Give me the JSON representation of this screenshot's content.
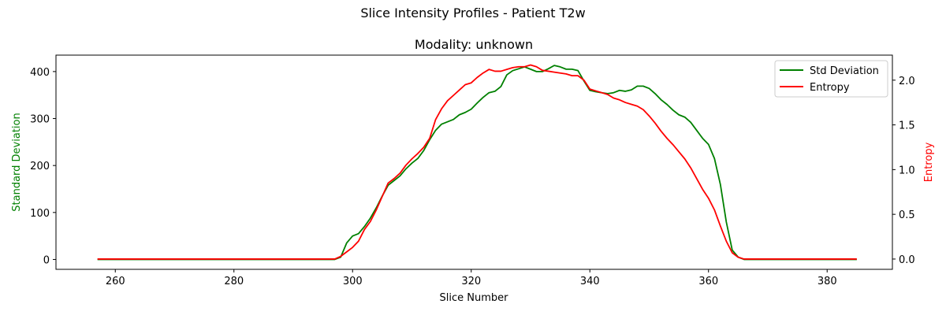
{
  "suptitle": "Slice Intensity Profiles - Patient T2w",
  "chart_data": {
    "type": "line",
    "title": "Modality: unknown",
    "xlabel": "Slice Number",
    "ylabel_left": "Standard Deviation",
    "ylabel_right": "Entropy",
    "xlim": [
      250,
      391
    ],
    "ylim_left": [
      -21,
      435
    ],
    "ylim_right": [
      -0.115,
      2.28
    ],
    "xticks": [
      260,
      280,
      300,
      320,
      340,
      360,
      380
    ],
    "yticks_left": [
      0,
      100,
      200,
      300,
      400
    ],
    "yticks_right": [
      0.0,
      0.5,
      1.0,
      1.5,
      2.0
    ],
    "grid": false,
    "legend_position": "upper right",
    "series": [
      {
        "name": "Std Deviation",
        "axis": "left",
        "color": "#008000",
        "points": [
          [
            257,
            0
          ],
          [
            297,
            0
          ],
          [
            298,
            5
          ],
          [
            299,
            35
          ],
          [
            300,
            50
          ],
          [
            301,
            55
          ],
          [
            302,
            70
          ],
          [
            303,
            88
          ],
          [
            304,
            110
          ],
          [
            305,
            135
          ],
          [
            306,
            158
          ],
          [
            307,
            168
          ],
          [
            308,
            178
          ],
          [
            309,
            193
          ],
          [
            310,
            205
          ],
          [
            311,
            215
          ],
          [
            312,
            232
          ],
          [
            313,
            255
          ],
          [
            314,
            275
          ],
          [
            315,
            288
          ],
          [
            316,
            293
          ],
          [
            317,
            298
          ],
          [
            318,
            308
          ],
          [
            319,
            313
          ],
          [
            320,
            320
          ],
          [
            321,
            333
          ],
          [
            322,
            345
          ],
          [
            323,
            355
          ],
          [
            324,
            358
          ],
          [
            325,
            368
          ],
          [
            326,
            393
          ],
          [
            327,
            402
          ],
          [
            328,
            406
          ],
          [
            329,
            410
          ],
          [
            330,
            405
          ],
          [
            331,
            400
          ],
          [
            332,
            400
          ],
          [
            333,
            406
          ],
          [
            334,
            413
          ],
          [
            335,
            410
          ],
          [
            336,
            405
          ],
          [
            337,
            405
          ],
          [
            338,
            402
          ],
          [
            339,
            380
          ],
          [
            340,
            360
          ],
          [
            341,
            357
          ],
          [
            342,
            355
          ],
          [
            343,
            353
          ],
          [
            344,
            355
          ],
          [
            345,
            360
          ],
          [
            346,
            358
          ],
          [
            347,
            361
          ],
          [
            348,
            369
          ],
          [
            349,
            369
          ],
          [
            350,
            364
          ],
          [
            351,
            353
          ],
          [
            352,
            340
          ],
          [
            353,
            330
          ],
          [
            354,
            318
          ],
          [
            355,
            308
          ],
          [
            356,
            303
          ],
          [
            357,
            292
          ],
          [
            358,
            275
          ],
          [
            359,
            258
          ],
          [
            360,
            245
          ],
          [
            361,
            215
          ],
          [
            362,
            160
          ],
          [
            363,
            80
          ],
          [
            364,
            20
          ],
          [
            365,
            5
          ],
          [
            366,
            0
          ],
          [
            385,
            0
          ]
        ]
      },
      {
        "name": "Entropy",
        "axis": "right",
        "color": "#ff0000",
        "points": [
          [
            257,
            0
          ],
          [
            297,
            0
          ],
          [
            298,
            0.03
          ],
          [
            299,
            0.08
          ],
          [
            300,
            0.13
          ],
          [
            301,
            0.2
          ],
          [
            302,
            0.33
          ],
          [
            303,
            0.42
          ],
          [
            304,
            0.55
          ],
          [
            305,
            0.7
          ],
          [
            306,
            0.85
          ],
          [
            307,
            0.9
          ],
          [
            308,
            0.96
          ],
          [
            309,
            1.05
          ],
          [
            310,
            1.12
          ],
          [
            311,
            1.18
          ],
          [
            312,
            1.25
          ],
          [
            313,
            1.35
          ],
          [
            314,
            1.56
          ],
          [
            315,
            1.68
          ],
          [
            316,
            1.77
          ],
          [
            317,
            1.83
          ],
          [
            318,
            1.89
          ],
          [
            319,
            1.95
          ],
          [
            320,
            1.97
          ],
          [
            321,
            2.03
          ],
          [
            322,
            2.08
          ],
          [
            323,
            2.12
          ],
          [
            324,
            2.1
          ],
          [
            325,
            2.1
          ],
          [
            326,
            2.12
          ],
          [
            327,
            2.14
          ],
          [
            328,
            2.15
          ],
          [
            329,
            2.15
          ],
          [
            330,
            2.17
          ],
          [
            331,
            2.15
          ],
          [
            332,
            2.11
          ],
          [
            333,
            2.1
          ],
          [
            334,
            2.09
          ],
          [
            335,
            2.08
          ],
          [
            336,
            2.07
          ],
          [
            337,
            2.05
          ],
          [
            338,
            2.05
          ],
          [
            339,
            2.0
          ],
          [
            340,
            1.9
          ],
          [
            341,
            1.88
          ],
          [
            342,
            1.86
          ],
          [
            343,
            1.84
          ],
          [
            344,
            1.8
          ],
          [
            345,
            1.78
          ],
          [
            346,
            1.75
          ],
          [
            347,
            1.73
          ],
          [
            348,
            1.71
          ],
          [
            349,
            1.67
          ],
          [
            350,
            1.6
          ],
          [
            351,
            1.52
          ],
          [
            352,
            1.43
          ],
          [
            353,
            1.35
          ],
          [
            354,
            1.28
          ],
          [
            355,
            1.2
          ],
          [
            356,
            1.12
          ],
          [
            357,
            1.02
          ],
          [
            358,
            0.9
          ],
          [
            359,
            0.78
          ],
          [
            360,
            0.68
          ],
          [
            361,
            0.55
          ],
          [
            362,
            0.37
          ],
          [
            363,
            0.2
          ],
          [
            364,
            0.07
          ],
          [
            365,
            0.02
          ],
          [
            366,
            0
          ],
          [
            385,
            0
          ]
        ]
      }
    ]
  }
}
